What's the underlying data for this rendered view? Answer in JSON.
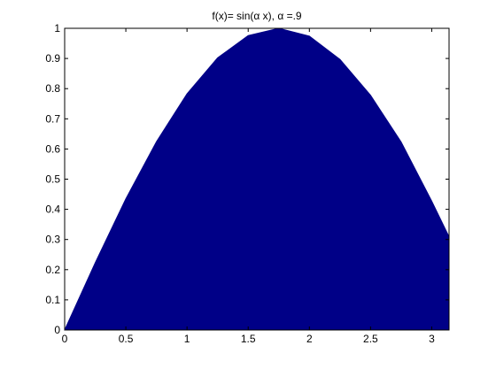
{
  "figure": {
    "title": "f(x)= sin(α x), α =.9"
  },
  "colors": {
    "fill": "#000087",
    "axes": "#000000",
    "background": "#ffffff"
  },
  "chart_data": {
    "type": "area",
    "title": "f(x)= sin(α x), α =.9",
    "xlabel": "",
    "ylabel": "",
    "xlim": [
      0,
      3.1416
    ],
    "ylim": [
      0,
      1
    ],
    "grid": false,
    "xticks": [
      0,
      0.5,
      1,
      1.5,
      2,
      2.5,
      3
    ],
    "xtick_labels": [
      "0",
      "0.5",
      "1",
      "1.5",
      "2",
      "2.5",
      "3"
    ],
    "yticks": [
      0,
      0.1,
      0.2,
      0.3,
      0.4,
      0.5,
      0.6,
      0.7,
      0.8,
      0.9,
      1
    ],
    "ytick_labels": [
      "0",
      "0.1",
      "0.2",
      "0.3",
      "0.4",
      "0.5",
      "0.6",
      "0.7",
      "0.8",
      "0.9",
      "1"
    ],
    "x": [
      0,
      0.25,
      0.5,
      0.75,
      1.0,
      1.25,
      1.5,
      1.75,
      2.0,
      2.25,
      2.5,
      2.75,
      3.0,
      3.1416
    ],
    "values": [
      0,
      0.223,
      0.435,
      0.624,
      0.783,
      0.902,
      0.976,
      1.0,
      0.974,
      0.897,
      0.778,
      0.623,
      0.427,
      0.309
    ]
  }
}
